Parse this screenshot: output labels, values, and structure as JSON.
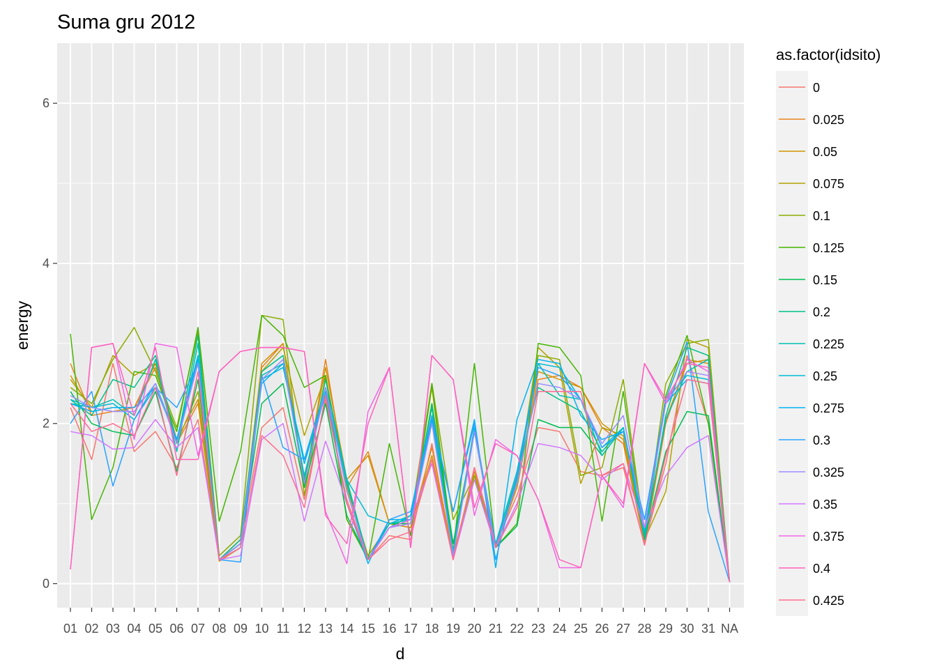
{
  "chart_data": {
    "type": "line",
    "title": "Suma gru 2012",
    "xlabel": "d",
    "ylabel": "energy",
    "categories": [
      "01",
      "02",
      "03",
      "04",
      "05",
      "06",
      "07",
      "08",
      "09",
      "10",
      "11",
      "12",
      "13",
      "14",
      "15",
      "16",
      "17",
      "18",
      "19",
      "20",
      "21",
      "22",
      "23",
      "24",
      "25",
      "26",
      "27",
      "28",
      "29",
      "30",
      "31",
      "NA"
    ],
    "ylim": [
      -0.3,
      6.75
    ],
    "yticks": [
      0,
      2,
      4,
      6
    ],
    "grid": true,
    "legend": {
      "title": "as.factor(idsito)",
      "position": "right"
    },
    "series": [
      {
        "name": "0",
        "color": "#F8766D",
        "values": [
          2.2,
          1.55,
          2.75,
          1.65,
          1.9,
          1.45,
          2.05,
          0.3,
          0.55,
          1.95,
          2.2,
          1.05,
          2.3,
          1.05,
          0.3,
          0.6,
          0.55,
          1.75,
          0.3,
          1.45,
          0.5,
          1.1,
          1.95,
          1.9,
          1.4,
          1.35,
          1.45,
          0.5,
          1.5,
          2.85,
          2.0,
          0.02
        ]
      },
      {
        "name": "0.025",
        "color": "#E7851E",
        "values": [
          2.75,
          2.1,
          2.15,
          2.2,
          2.7,
          1.75,
          2.25,
          0.28,
          0.45,
          2.7,
          3.0,
          1.2,
          2.8,
          1.2,
          1.65,
          0.75,
          0.7,
          1.7,
          0.35,
          1.35,
          0.5,
          1.2,
          2.55,
          2.6,
          2.45,
          1.95,
          1.75,
          0.5,
          2.0,
          2.8,
          2.75,
          0.02
        ]
      },
      {
        "name": "0.05",
        "color": "#D09400",
        "values": [
          2.6,
          2.15,
          2.2,
          2.2,
          2.75,
          1.8,
          2.3,
          0.3,
          0.5,
          2.75,
          3.0,
          1.25,
          2.7,
          1.3,
          1.6,
          0.75,
          0.7,
          1.6,
          0.35,
          1.4,
          0.45,
          1.2,
          2.65,
          2.55,
          2.45,
          2.0,
          1.8,
          0.55,
          2.05,
          2.75,
          2.8,
          0.02
        ]
      },
      {
        "name": "0.075",
        "color": "#B2A100",
        "values": [
          2.55,
          2.2,
          2.85,
          2.6,
          2.75,
          1.75,
          2.4,
          0.3,
          0.55,
          2.65,
          2.95,
          1.85,
          2.6,
          1.2,
          0.35,
          0.75,
          0.75,
          2.45,
          0.35,
          1.35,
          0.45,
          1.25,
          2.95,
          2.7,
          1.25,
          1.95,
          1.85,
          0.55,
          1.15,
          3.05,
          2.95,
          0.02
        ]
      },
      {
        "name": "0.1",
        "color": "#89AC00",
        "values": [
          2.45,
          2.25,
          2.8,
          3.2,
          2.65,
          1.95,
          3.15,
          0.35,
          0.6,
          3.35,
          3.3,
          1.1,
          2.6,
          0.8,
          0.3,
          0.7,
          0.8,
          2.5,
          0.8,
          1.35,
          0.45,
          1.3,
          2.85,
          2.8,
          1.35,
          1.45,
          2.55,
          0.6,
          2.5,
          3.0,
          3.05,
          0.02
        ]
      },
      {
        "name": "0.125",
        "color": "#45B500",
        "values": [
          3.12,
          0.8,
          1.45,
          2.65,
          2.6,
          1.9,
          3.2,
          0.78,
          1.65,
          3.35,
          3.1,
          2.45,
          2.6,
          0.8,
          0.3,
          1.75,
          0.6,
          2.5,
          0.4,
          2.75,
          0.45,
          0.75,
          3.0,
          2.95,
          2.6,
          0.78,
          2.4,
          0.55,
          2.35,
          3.1,
          2.0,
          0.02
        ]
      },
      {
        "name": "0.15",
        "color": "#00BC51",
        "values": [
          2.4,
          2.0,
          1.9,
          1.85,
          2.4,
          1.4,
          2.55,
          0.3,
          0.5,
          2.25,
          2.5,
          1.2,
          2.25,
          0.85,
          0.3,
          0.75,
          0.75,
          2.25,
          0.5,
          1.9,
          0.45,
          0.72,
          2.05,
          1.95,
          1.95,
          1.6,
          1.95,
          0.55,
          1.65,
          2.15,
          2.1,
          0.02
        ]
      },
      {
        "name": "0.2",
        "color": "#00C087",
        "values": [
          2.3,
          2.1,
          2.55,
          2.45,
          2.85,
          1.75,
          3.1,
          0.3,
          0.55,
          2.65,
          2.85,
          1.3,
          2.55,
          1.3,
          0.3,
          0.7,
          0.85,
          2.2,
          0.4,
          1.95,
          0.45,
          1.35,
          2.45,
          2.3,
          2.15,
          1.65,
          1.95,
          0.55,
          2.1,
          2.95,
          2.85,
          0.02
        ]
      },
      {
        "name": "0.225",
        "color": "#00C0B2",
        "values": [
          2.25,
          2.2,
          2.3,
          2.1,
          2.8,
          1.65,
          3.0,
          0.3,
          0.5,
          2.6,
          2.75,
          1.35,
          2.4,
          1.25,
          0.3,
          0.75,
          0.8,
          2.1,
          0.35,
          1.9,
          0.45,
          1.3,
          2.75,
          2.35,
          2.3,
          1.6,
          1.95,
          0.6,
          2.05,
          2.65,
          2.8,
          0.02
        ]
      },
      {
        "name": "0.25",
        "color": "#00BCD6",
        "values": [
          2.3,
          2.2,
          2.25,
          2.05,
          2.5,
          1.8,
          2.85,
          0.3,
          0.45,
          2.55,
          2.7,
          1.55,
          2.45,
          1.3,
          0.85,
          0.75,
          0.85,
          2.05,
          0.4,
          1.95,
          0.5,
          1.4,
          2.75,
          2.7,
          2.3,
          1.7,
          1.95,
          0.65,
          2.3,
          2.6,
          2.55,
          0.02
        ]
      },
      {
        "name": "0.275",
        "color": "#00B3F2",
        "values": [
          2.25,
          2.15,
          2.2,
          2.2,
          2.45,
          1.8,
          2.8,
          0.3,
          0.5,
          2.5,
          2.75,
          1.5,
          2.4,
          1.0,
          0.25,
          0.8,
          0.8,
          2.05,
          0.9,
          2.05,
          0.2,
          2.05,
          2.8,
          2.75,
          2.1,
          1.8,
          1.9,
          0.8,
          2.25,
          2.55,
          2.5,
          0.02
        ]
      },
      {
        "name": "0.3",
        "color": "#29A3FF",
        "values": [
          2.0,
          2.4,
          1.22,
          2.05,
          2.45,
          2.2,
          2.75,
          0.3,
          0.27,
          2.6,
          1.7,
          1.55,
          2.35,
          1.0,
          0.3,
          0.8,
          0.9,
          2.1,
          0.9,
          2.0,
          0.3,
          1.35,
          2.7,
          2.6,
          2.3,
          1.7,
          1.9,
          0.8,
          2.3,
          3.02,
          0.9,
          0.02
        ]
      },
      {
        "name": "0.325",
        "color": "#9C8DFF",
        "values": [
          2.35,
          2.2,
          2.15,
          2.15,
          2.5,
          1.75,
          2.75,
          0.3,
          0.5,
          2.55,
          2.8,
          1.25,
          2.45,
          1.15,
          0.3,
          0.7,
          0.75,
          2.0,
          0.35,
          1.9,
          0.45,
          1.25,
          2.5,
          2.45,
          2.3,
          1.75,
          2.1,
          0.7,
          2.25,
          2.65,
          2.6,
          0.02
        ]
      },
      {
        "name": "0.35",
        "color": "#D277FF",
        "values": [
          1.9,
          1.85,
          1.68,
          1.7,
          2.05,
          1.7,
          1.95,
          0.3,
          0.35,
          1.8,
          2.0,
          0.78,
          1.78,
          1.0,
          0.3,
          0.7,
          0.8,
          1.5,
          0.3,
          1.3,
          0.45,
          1.0,
          1.75,
          1.7,
          1.6,
          1.3,
          1.5,
          0.7,
          1.35,
          1.7,
          1.85,
          0.02
        ]
      },
      {
        "name": "0.375",
        "color": "#F365E6",
        "values": [
          0.18,
          2.95,
          3.0,
          1.8,
          3.0,
          2.95,
          1.6,
          2.65,
          2.9,
          2.95,
          2.95,
          2.9,
          0.9,
          0.25,
          2.15,
          2.7,
          0.45,
          2.85,
          2.55,
          0.85,
          1.8,
          1.6,
          1.05,
          0.2,
          0.2,
          1.35,
          0.95,
          2.75,
          2.25,
          2.8,
          2.65,
          0.02
        ]
      },
      {
        "name": "0.4",
        "color": "#FF62BC",
        "values": [
          0.18,
          2.95,
          3.0,
          2.1,
          2.95,
          1.55,
          1.55,
          2.65,
          2.9,
          2.95,
          2.95,
          2.9,
          0.85,
          0.5,
          2.0,
          2.7,
          0.45,
          2.85,
          2.55,
          0.95,
          1.75,
          1.6,
          1.05,
          0.3,
          0.2,
          1.35,
          1.0,
          2.75,
          2.3,
          2.75,
          2.7,
          0.02
        ]
      },
      {
        "name": "0.425",
        "color": "#FF6C91",
        "values": [
          2.25,
          1.9,
          2.0,
          1.85,
          2.45,
          1.35,
          2.65,
          0.3,
          0.45,
          1.85,
          1.6,
          0.95,
          2.35,
          1.0,
          0.3,
          0.55,
          0.65,
          1.55,
          0.3,
          1.45,
          0.45,
          0.95,
          2.4,
          2.4,
          2.4,
          1.35,
          1.5,
          0.48,
          1.6,
          2.55,
          2.5,
          0.02
        ]
      }
    ]
  }
}
